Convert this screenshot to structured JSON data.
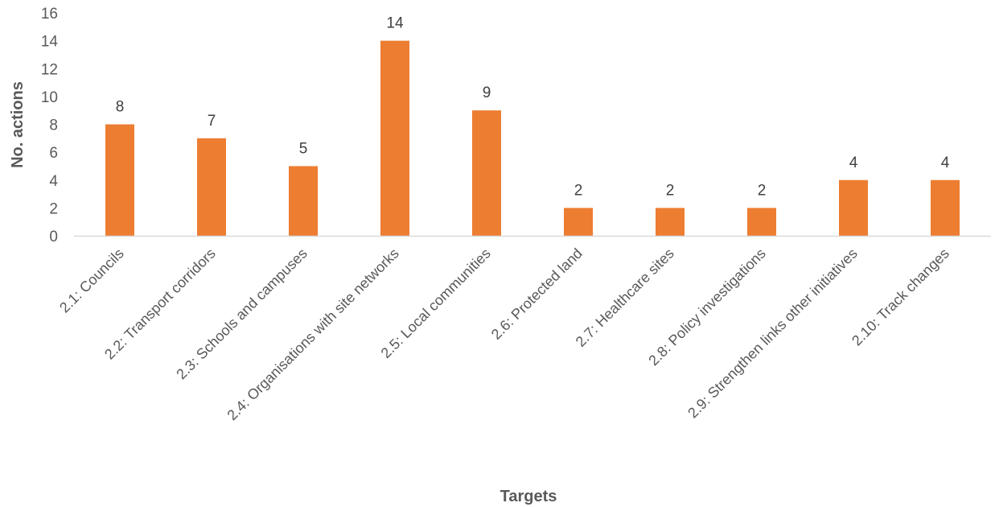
{
  "chart_data": {
    "type": "bar",
    "categories": [
      "2.1: Councils",
      "2.2: Transport corridors",
      "2.3: Schools and campuses",
      "2.4: Organisations with site networks",
      "2.5: Local communities",
      "2.6: Protected land",
      "2.7: Healthcare sites",
      "2.8: Policy investigations",
      "2.9: Strengthen links other initiatives",
      "2.10: Track changes"
    ],
    "values": [
      8,
      7,
      5,
      14,
      9,
      2,
      2,
      2,
      4,
      4
    ],
    "data_labels": [
      "8",
      "7",
      "5",
      "14",
      "9",
      "2",
      "2",
      "2",
      "4",
      "4"
    ],
    "title": "",
    "xlabel": "Targets",
    "ylabel": "No. actions",
    "ylim": [
      0,
      16
    ],
    "yticks": [
      0,
      2,
      4,
      6,
      8,
      10,
      12,
      14,
      16
    ],
    "grid": false,
    "legend": "none",
    "colors": {
      "bar": "#ED7D31",
      "axis": "#D9D9D9",
      "text": "#595959"
    }
  }
}
